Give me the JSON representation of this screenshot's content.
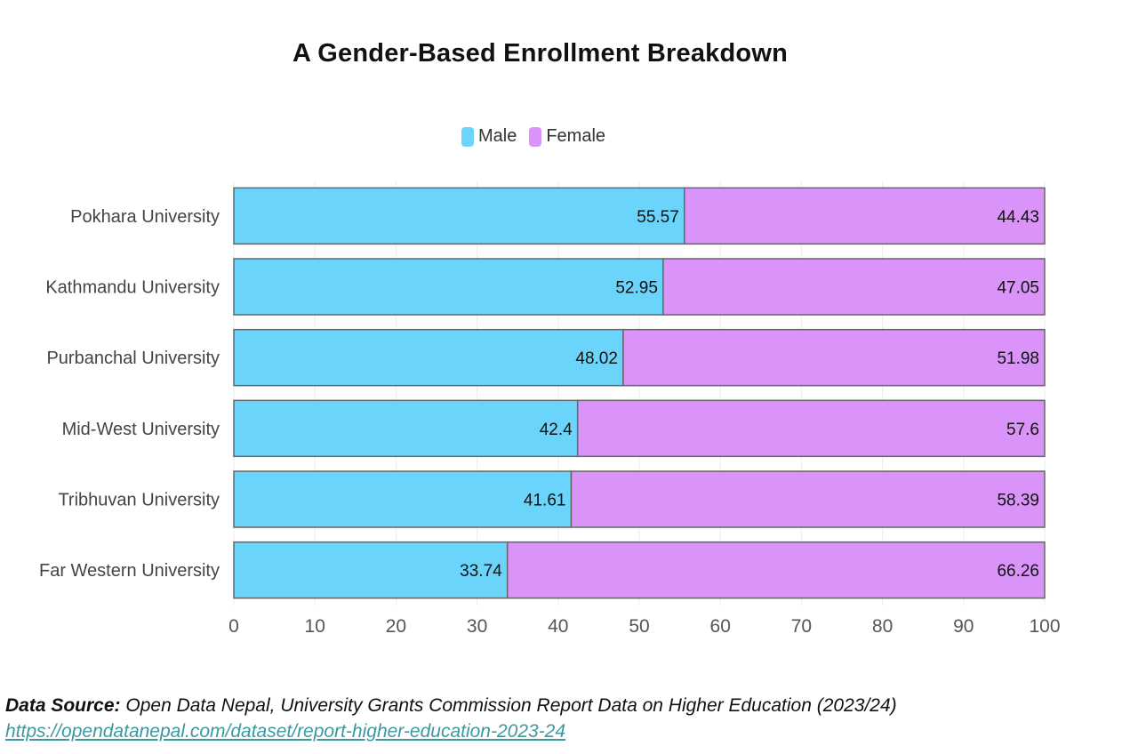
{
  "chart_data": {
    "type": "bar",
    "orientation": "horizontal",
    "stacked": true,
    "title": "A Gender-Based Enrollment Breakdown",
    "categories": [
      "Pokhara University",
      "Kathmandu University",
      "Purbanchal University",
      "Mid-West University",
      "Tribhuvan University",
      "Far Western University"
    ],
    "series": [
      {
        "name": "Male",
        "color": "#6ad4fb",
        "values": [
          55.57,
          52.95,
          48.02,
          42.4,
          41.61,
          33.74
        ]
      },
      {
        "name": "Female",
        "color": "#d993f9",
        "values": [
          44.43,
          47.05,
          51.98,
          57.6,
          58.39,
          66.26
        ]
      }
    ],
    "xlim": [
      0,
      100
    ],
    "xticks": [
      0,
      10,
      20,
      30,
      40,
      50,
      60,
      70,
      80,
      90,
      100
    ],
    "legend_position": "top-center",
    "grid": true
  },
  "footer": {
    "source_label": "Data Source:",
    "source_text": " Open Data Nepal, University Grants Commission Report Data on Higher Education (2023/24)",
    "url": "https://opendatanepal.com/dataset/report-higher-education-2023-24"
  }
}
